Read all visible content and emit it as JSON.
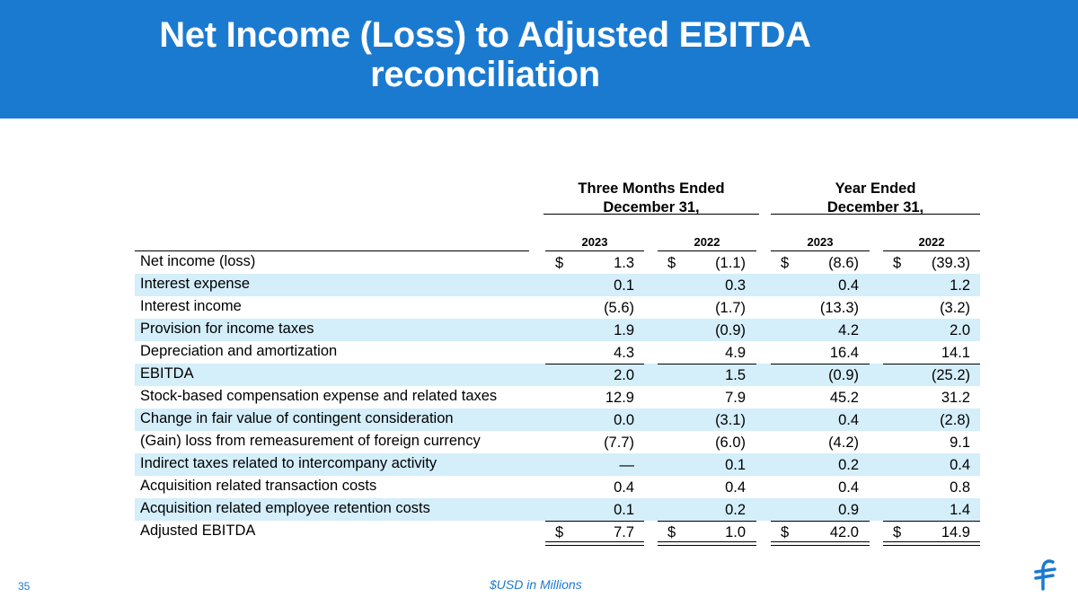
{
  "title": {
    "line1": "Net Income (Loss) to Adjusted EBITDA",
    "line2": "reconciliation"
  },
  "brand_color": "#1a7ad0",
  "shade_color": "#d4eefa",
  "groups": [
    {
      "line1": "Three Months Ended",
      "line2": "December 31,"
    },
    {
      "line1": "Year Ended",
      "line2": "December 31,"
    }
  ],
  "years": [
    "2023",
    "2022",
    "2023",
    "2022"
  ],
  "currency_symbol": "$",
  "rows": [
    {
      "label": "Net income (loss)",
      "values": [
        "1.3",
        "(1.1)",
        "(8.6)",
        "(39.3)"
      ]
    },
    {
      "label": "Interest expense",
      "values": [
        "0.1",
        "0.3",
        "0.4",
        "1.2"
      ]
    },
    {
      "label": "Interest income",
      "values": [
        "(5.6)",
        "(1.7)",
        "(13.3)",
        "(3.2)"
      ]
    },
    {
      "label": "Provision for income taxes",
      "values": [
        "1.9",
        "(0.9)",
        "4.2",
        "2.0"
      ]
    },
    {
      "label": "Depreciation and amortization",
      "values": [
        "4.3",
        "4.9",
        "16.4",
        "14.1"
      ]
    },
    {
      "label": "EBITDA",
      "values": [
        "2.0",
        "1.5",
        "(0.9)",
        "(25.2)"
      ]
    },
    {
      "label": "Stock-based compensation expense and related taxes",
      "values": [
        "12.9",
        "7.9",
        "45.2",
        "31.2"
      ]
    },
    {
      "label": "Change in fair value of contingent consideration",
      "values": [
        "0.0",
        "(3.1)",
        "0.4",
        "(2.8)"
      ]
    },
    {
      "label": "(Gain) loss from remeasurement of foreign currency",
      "values": [
        "(7.7)",
        "(6.0)",
        "(4.2)",
        "9.1"
      ]
    },
    {
      "label": "Indirect taxes related to intercompany activity",
      "values": [
        "—",
        "0.1",
        "0.2",
        "0.4"
      ]
    },
    {
      "label": "Acquisition related transaction costs",
      "values": [
        "0.4",
        "0.4",
        "0.4",
        "0.8"
      ]
    },
    {
      "label": "Acquisition related employee retention costs",
      "values": [
        "0.1",
        "0.2",
        "0.9",
        "1.4"
      ]
    },
    {
      "label": "Adjusted EBITDA",
      "values": [
        "7.7",
        "1.0",
        "42.0",
        "14.9"
      ]
    }
  ],
  "footer": {
    "page_number": "35",
    "note": "$USD in Millions"
  },
  "logo_icon": "flywire-logo-icon"
}
